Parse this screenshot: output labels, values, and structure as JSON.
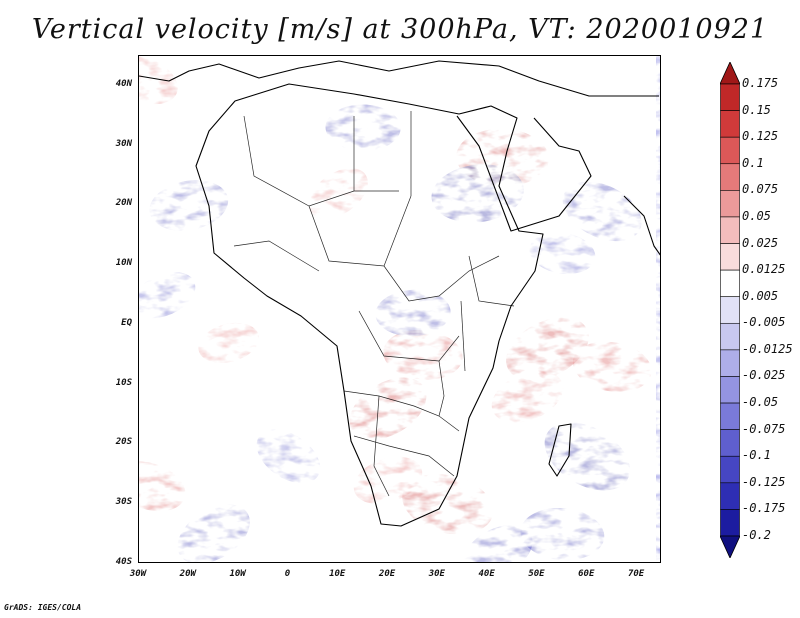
{
  "title": "Vertical velocity [m/s] at 300hPa, VT: 2020010921",
  "footer": "GrADS: IGES/COLA",
  "map": {
    "lat_labels": [
      "40N",
      "30N",
      "20N",
      "10N",
      "EQ",
      "10S",
      "20S",
      "30S",
      "40S"
    ],
    "lat_values": [
      40,
      30,
      20,
      10,
      0,
      -10,
      -20,
      -30,
      -40
    ],
    "lon_labels": [
      "30W",
      "20W",
      "10W",
      "0",
      "10E",
      "20E",
      "30E",
      "40E",
      "50E",
      "60E",
      "70E"
    ],
    "lon_values": [
      -30,
      -20,
      -10,
      0,
      10,
      20,
      30,
      40,
      50,
      60,
      70
    ],
    "lat_range": [
      -40,
      45
    ],
    "lon_range": [
      -30,
      75
    ]
  },
  "colorbar": {
    "labels": [
      "0.175",
      "0.15",
      "0.125",
      "0.1",
      "0.075",
      "0.05",
      "0.025",
      "0.0125",
      "0.005",
      "-0.005",
      "-0.0125",
      "-0.025",
      "-0.05",
      "-0.075",
      "-0.1",
      "-0.125",
      "-0.175",
      "-0.2"
    ],
    "colors": [
      "#a01818",
      "#c02828",
      "#d03a3a",
      "#dc5858",
      "#e57a7a",
      "#ec9a9a",
      "#f3bcbc",
      "#f8dcdc",
      "#ffffff",
      "#e2e2f7",
      "#c8c8f0",
      "#aeaee9",
      "#9494e2",
      "#7a7ad9",
      "#5f5fce",
      "#4646c3",
      "#2e2eb4",
      "#1c1ca0",
      "#101080"
    ]
  },
  "chart_data": {
    "type": "heatmap",
    "title": "Vertical velocity [m/s] at 300hPa, VT: 2020010921",
    "variable": "Vertical velocity",
    "units": "m/s",
    "level": "300hPa",
    "valid_time": "2020010921",
    "x": {
      "range": [
        -30,
        75
      ],
      "ticks": [
        -30,
        -20,
        -10,
        0,
        10,
        20,
        30,
        40,
        50,
        60,
        70
      ],
      "tick_labels": [
        "30W",
        "20W",
        "10W",
        "0",
        "10E",
        "20E",
        "30E",
        "40E",
        "50E",
        "60E",
        "70E"
      ]
    },
    "y": {
      "range": [
        -40,
        45
      ],
      "ticks": [
        40,
        30,
        20,
        10,
        0,
        -10,
        -20,
        -30,
        -40
      ],
      "tick_labels": [
        "40N",
        "30N",
        "20N",
        "10N",
        "EQ",
        "10S",
        "20S",
        "30S",
        "40S"
      ]
    },
    "contour_levels": [
      -0.2,
      -0.175,
      -0.125,
      -0.1,
      -0.075,
      -0.05,
      -0.025,
      -0.0125,
      -0.005,
      0.005,
      0.0125,
      0.025,
      0.05,
      0.075,
      0.1,
      0.125,
      0.15,
      0.175
    ],
    "upward_regions": [
      {
        "lon": 10,
        "lat": 22,
        "strength": 0.06
      },
      {
        "lon": 43,
        "lat": 28,
        "strength": 0.12
      },
      {
        "lon": 20,
        "lat": -14,
        "strength": 0.1
      },
      {
        "lon": 27,
        "lat": -5,
        "strength": 0.09
      },
      {
        "lon": 52,
        "lat": -4,
        "strength": 0.11
      },
      {
        "lon": 65,
        "lat": -7,
        "strength": 0.09
      },
      {
        "lon": 48,
        "lat": -12,
        "strength": 0.08
      },
      {
        "lon": 32,
        "lat": -30,
        "strength": 0.12
      },
      {
        "lon": 20,
        "lat": -26,
        "strength": 0.07
      },
      {
        "lon": -28,
        "lat": -27,
        "strength": 0.08
      },
      {
        "lon": -12,
        "lat": -3,
        "strength": 0.05
      },
      {
        "lon": -29,
        "lat": 41,
        "strength": 0.07
      }
    ],
    "downward_regions": [
      {
        "lon": -20,
        "lat": 20,
        "strength": -0.09
      },
      {
        "lon": 63,
        "lat": 19,
        "strength": -0.1
      },
      {
        "lon": 38,
        "lat": 22,
        "strength": -0.12
      },
      {
        "lon": 60,
        "lat": -22,
        "strength": -0.12
      },
      {
        "lon": 25,
        "lat": 2,
        "strength": -0.08
      },
      {
        "lon": 0,
        "lat": -22,
        "strength": -0.07
      },
      {
        "lon": 15,
        "lat": 33,
        "strength": -0.08
      },
      {
        "lon": -15,
        "lat": -35,
        "strength": -0.09
      },
      {
        "lon": 55,
        "lat": -35,
        "strength": -0.1
      },
      {
        "lon": 42,
        "lat": -38,
        "strength": -0.08
      },
      {
        "lon": 55,
        "lat": 12,
        "strength": -0.06
      },
      {
        "lon": -25,
        "lat": 5,
        "strength": -0.06
      }
    ]
  }
}
